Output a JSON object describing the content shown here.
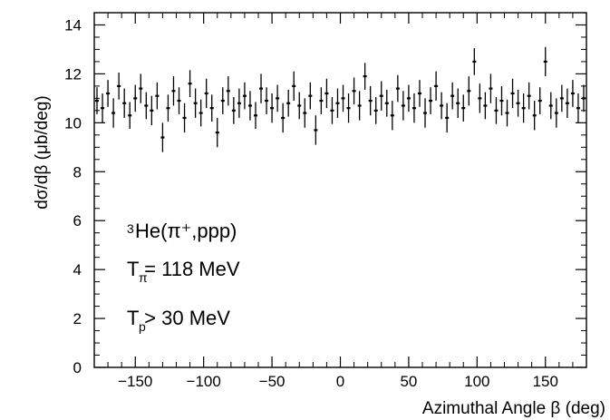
{
  "chart_data": {
    "type": "scatter",
    "title": "",
    "xlabel": "Azimuthal Angle β (deg)",
    "ylabel": "dσ/dβ  (μb/deg)",
    "xlim": [
      -180,
      180
    ],
    "ylim": [
      0,
      14.5
    ],
    "xticks": [
      -150,
      -100,
      -50,
      0,
      50,
      100,
      150
    ],
    "yticks": [
      0,
      2,
      4,
      6,
      8,
      10,
      12,
      14
    ],
    "xtick_labels": [
      "−150",
      "−100",
      "−50",
      "0",
      "50",
      "100",
      "150"
    ],
    "ytick_labels": [
      "0",
      "2",
      "4",
      "6",
      "8",
      "10",
      "12",
      "14"
    ],
    "grid": false,
    "annotations": {
      "reaction": "He(π⁺,ppp)",
      "reaction_superscript": "3",
      "energy_pion": "T  = 118 MeV",
      "energy_pion_subscript": "π",
      "energy_proton": "T  > 30 MeV",
      "energy_proton_subscript": "p"
    },
    "series": [
      {
        "x": [
          -178,
          -174,
          -170,
          -166,
          -162,
          -158,
          -154,
          -150,
          -146,
          -142,
          -138,
          -134,
          -130,
          -126,
          -122,
          -118,
          -114,
          -110,
          -106,
          -102,
          -98,
          -94,
          -90,
          -86,
          -82,
          -78,
          -74,
          -70,
          -66,
          -62,
          -58,
          -54,
          -50,
          -46,
          -42,
          -38,
          -34,
          -30,
          -26,
          -22,
          -18,
          -14,
          -10,
          -6,
          -2,
          2,
          6,
          10,
          14,
          18,
          22,
          26,
          30,
          34,
          38,
          42,
          46,
          50,
          54,
          58,
          62,
          66,
          70,
          74,
          78,
          82,
          86,
          90,
          94,
          98,
          102,
          106,
          110,
          114,
          118,
          122,
          126,
          130,
          134,
          138,
          142,
          146,
          150,
          154,
          158,
          162,
          166,
          170,
          174,
          178
        ],
        "y": [
          10.9,
          10.6,
          11.2,
          10.4,
          11.5,
          10.8,
          10.3,
          11.0,
          11.4,
          10.7,
          10.5,
          11.1,
          9.4,
          10.6,
          11.3,
          10.9,
          10.2,
          11.6,
          10.8,
          10.4,
          11.2,
          10.6,
          9.6,
          10.9,
          11.3,
          10.5,
          10.8,
          11.1,
          10.7,
          10.3,
          11.4,
          10.9,
          10.6,
          11.0,
          10.2,
          10.8,
          11.5,
          10.7,
          10.4,
          11.1,
          9.7,
          10.9,
          11.2,
          10.5,
          10.8,
          11.0,
          10.6,
          11.3,
          10.7,
          11.9,
          10.9,
          10.5,
          11.1,
          10.8,
          10.3,
          11.4,
          10.7,
          11.0,
          10.6,
          11.2,
          10.4,
          10.9,
          11.5,
          10.7,
          10.2,
          11.1,
          10.8,
          10.6,
          11.3,
          12.5,
          11.0,
          10.7,
          11.4,
          10.5,
          10.9,
          10.4,
          11.2,
          10.8,
          10.6,
          11.1,
          10.3,
          10.9,
          12.5,
          10.7,
          10.4,
          11.0,
          10.8,
          11.2,
          10.6,
          11.0
        ],
        "err": [
          0.55,
          0.6,
          0.55,
          0.6,
          0.55,
          0.6,
          0.55,
          0.55,
          0.6,
          0.55,
          0.6,
          0.55,
          0.6,
          0.55,
          0.6,
          0.55,
          0.6,
          0.55,
          0.6,
          0.55,
          0.6,
          0.55,
          0.6,
          0.55,
          0.6,
          0.55,
          0.6,
          0.55,
          0.6,
          0.55,
          0.6,
          0.55,
          0.6,
          0.55,
          0.6,
          0.55,
          0.6,
          0.55,
          0.6,
          0.55,
          0.6,
          0.55,
          0.6,
          0.55,
          0.6,
          0.55,
          0.6,
          0.55,
          0.6,
          0.55,
          0.6,
          0.55,
          0.6,
          0.55,
          0.6,
          0.55,
          0.6,
          0.55,
          0.6,
          0.55,
          0.6,
          0.55,
          0.6,
          0.55,
          0.6,
          0.55,
          0.6,
          0.55,
          0.6,
          0.55,
          0.6,
          0.55,
          0.6,
          0.55,
          0.6,
          0.55,
          0.6,
          0.55,
          0.6,
          0.55,
          0.6,
          0.55,
          0.6,
          0.55,
          0.6,
          0.55,
          0.6,
          0.55,
          0.6,
          0.55
        ]
      }
    ]
  },
  "colors": {
    "axes": "#000000",
    "points": "#000000",
    "background": "#ffffff"
  }
}
